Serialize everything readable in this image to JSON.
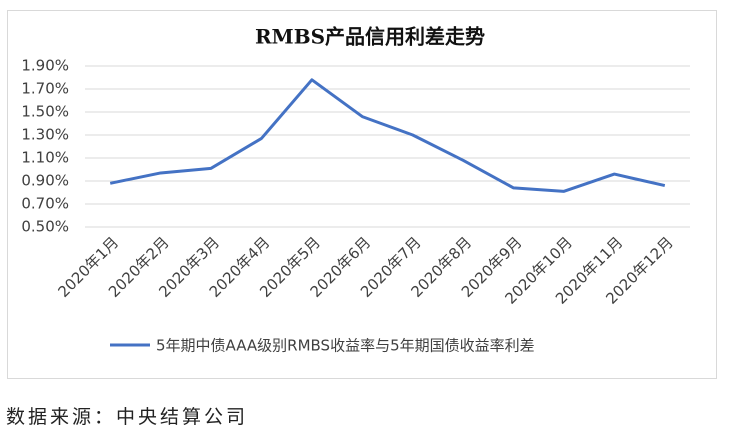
{
  "chart_data": {
    "type": "line",
    "title": "RMBS产品信用利差走势",
    "categories": [
      "2020年1月",
      "2020年2月",
      "2020年3月",
      "2020年4月",
      "2020年5月",
      "2020年6月",
      "2020年7月",
      "2020年8月",
      "2020年9月",
      "2020年10月",
      "2020年11月",
      "2020年12月"
    ],
    "series": [
      {
        "name": "5年期中债AAA级别RMBS收益率与5年期国债收益率利差",
        "color": "#4472c4",
        "values": [
          0.88,
          0.97,
          1.01,
          1.27,
          1.78,
          1.46,
          1.3,
          1.08,
          0.84,
          0.81,
          0.96,
          0.86
        ]
      }
    ],
    "ylim": [
      0.5,
      1.9
    ],
    "yticks": [
      {
        "value": 0.5,
        "label": "0.50%"
      },
      {
        "value": 0.7,
        "label": "0.70%"
      },
      {
        "value": 0.9,
        "label": "0.90%"
      },
      {
        "value": 1.1,
        "label": "1.10%"
      },
      {
        "value": 1.3,
        "label": "1.30%"
      },
      {
        "value": 1.5,
        "label": "1.50%"
      },
      {
        "value": 1.7,
        "label": "1.70%"
      },
      {
        "value": 1.9,
        "label": "1.90%"
      }
    ],
    "grid": true,
    "legend": "bottom"
  },
  "source": "数据来源：中央结算公司"
}
